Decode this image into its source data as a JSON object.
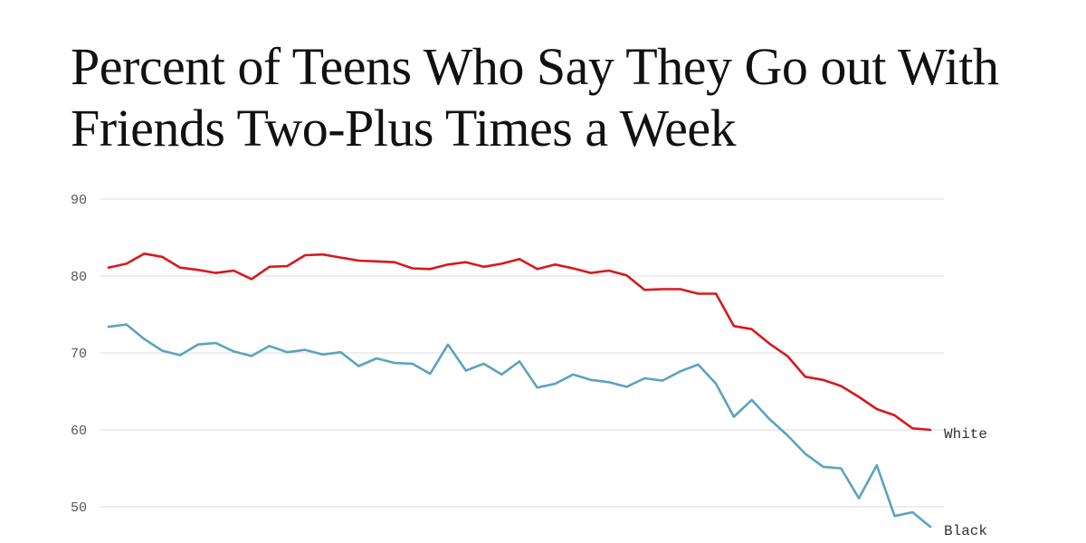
{
  "chart_data": {
    "type": "line",
    "title_lines": [
      "Percent of Teens Who Say They Go out With",
      "Friends Two-Plus Times a Week"
    ],
    "xlabel": "",
    "ylabel": "",
    "ylim": [
      46,
      90
    ],
    "y_ticks": [
      90,
      80,
      70,
      60,
      50
    ],
    "grid": true,
    "series": [
      {
        "name": "White",
        "color": "#d7191c",
        "values": [
          81.1,
          81.6,
          82.9,
          82.5,
          81.1,
          80.8,
          80.4,
          80.7,
          79.6,
          81.2,
          81.3,
          82.7,
          82.8,
          82.4,
          82.0,
          81.9,
          81.8,
          81.0,
          80.9,
          81.5,
          81.8,
          81.2,
          81.6,
          82.2,
          80.9,
          81.5,
          81.0,
          80.4,
          80.7,
          80.1,
          78.2,
          78.3,
          78.3,
          77.7,
          77.7,
          73.5,
          73.1,
          71.2,
          69.6,
          66.9,
          66.5,
          65.7,
          64.3,
          62.7,
          61.9,
          60.2,
          60.0
        ]
      },
      {
        "name": "Black",
        "color": "#5ba3bf",
        "values": [
          73.4,
          73.7,
          71.8,
          70.3,
          69.7,
          71.1,
          71.3,
          70.2,
          69.6,
          70.9,
          70.1,
          70.4,
          69.8,
          70.1,
          68.3,
          69.3,
          68.7,
          68.6,
          67.3,
          71.1,
          67.7,
          68.6,
          67.2,
          68.9,
          65.5,
          66.0,
          67.2,
          66.5,
          66.2,
          65.6,
          66.7,
          66.4,
          67.6,
          68.5,
          66.0,
          61.7,
          63.9,
          61.4,
          59.3,
          56.9,
          55.2,
          55.0,
          51.1,
          55.4,
          48.8,
          49.3,
          47.4
        ]
      }
    ]
  }
}
